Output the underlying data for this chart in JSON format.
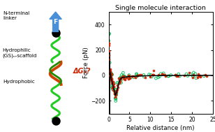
{
  "title": "Single molecule interaction",
  "xlabel": "Relative distance (nm)",
  "ylabel": "Force (pN)",
  "xlim": [
    0,
    25
  ],
  "ylim": [
    -300,
    500
  ],
  "yticks": [
    -200,
    0,
    200,
    400
  ],
  "xticks": [
    0,
    5,
    10,
    15,
    20,
    25
  ],
  "bg_color": "#ffffff",
  "arrow_color": "#4a90d9",
  "label_N_terminal": "N-terminal\nlinker",
  "label_hydrophilic": "Hydrophilic\n(GS)ₙ-scaffold",
  "label_hydrophobic": "Hydrophobic",
  "label_delta_G": "ΔG₀?",
  "fit_color": "#000000",
  "red_color": "#cc2200",
  "green_color": "#00bb55"
}
